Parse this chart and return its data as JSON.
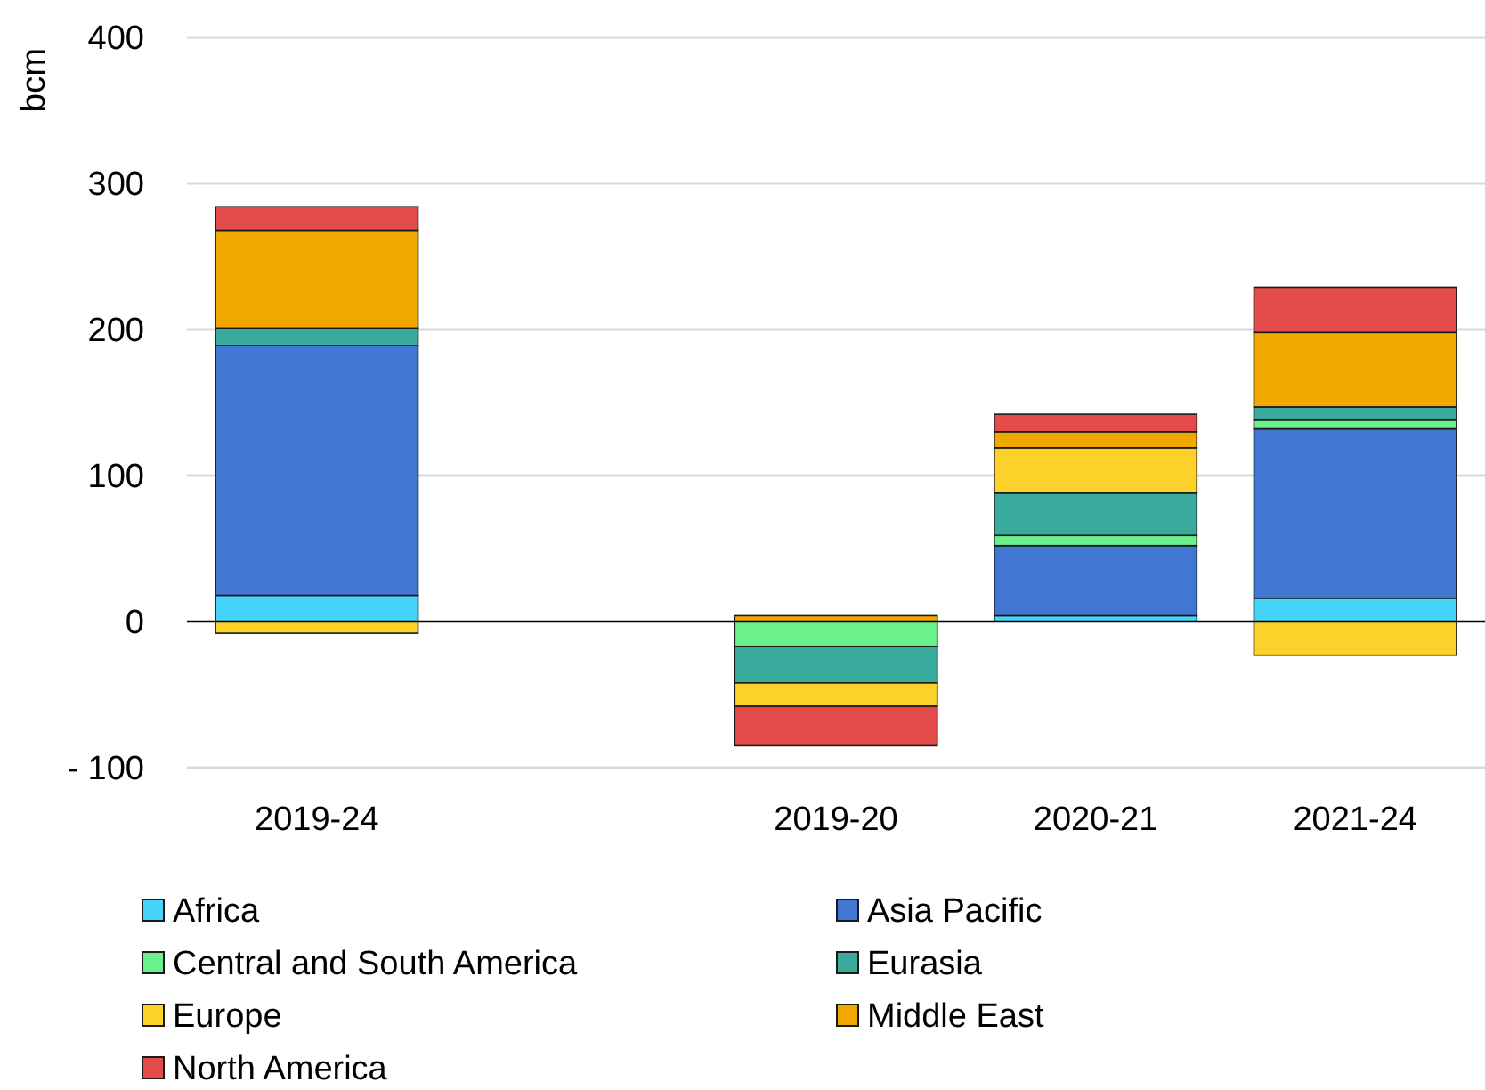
{
  "chart_data": {
    "type": "bar",
    "stacked": true,
    "ylabel": "bcm",
    "categories": [
      "2019-24",
      null,
      "2019-20",
      "2020-21",
      "2021-24"
    ],
    "series": [
      {
        "name": "Africa",
        "color": "#45d5fa",
        "values": [
          18,
          null,
          null,
          4,
          16
        ]
      },
      {
        "name": "Asia Pacific",
        "color": "#4177d2",
        "values": [
          171,
          null,
          null,
          48,
          116
        ]
      },
      {
        "name": "Central and South America",
        "color": "#6cf08c",
        "values": [
          0,
          null,
          -17,
          7,
          6
        ]
      },
      {
        "name": "Eurasia",
        "color": "#39ab9c",
        "values": [
          12,
          null,
          -25,
          29,
          9
        ]
      },
      {
        "name": "Europe",
        "color": "#fcd12a",
        "values": [
          -8,
          null,
          -16,
          31,
          -23
        ]
      },
      {
        "name": "Middle East",
        "color": "#f0a800",
        "values": [
          67,
          null,
          4,
          11,
          51
        ]
      },
      {
        "name": "North America",
        "color": "#e44b4b",
        "values": [
          16,
          null,
          -27,
          12,
          31
        ]
      }
    ],
    "ylim": [
      -100,
      400
    ],
    "yticks": [
      {
        "value": -100,
        "label": "- 100"
      },
      0,
      100,
      200,
      300,
      400
    ],
    "grid": "y",
    "legend": "bottom"
  }
}
